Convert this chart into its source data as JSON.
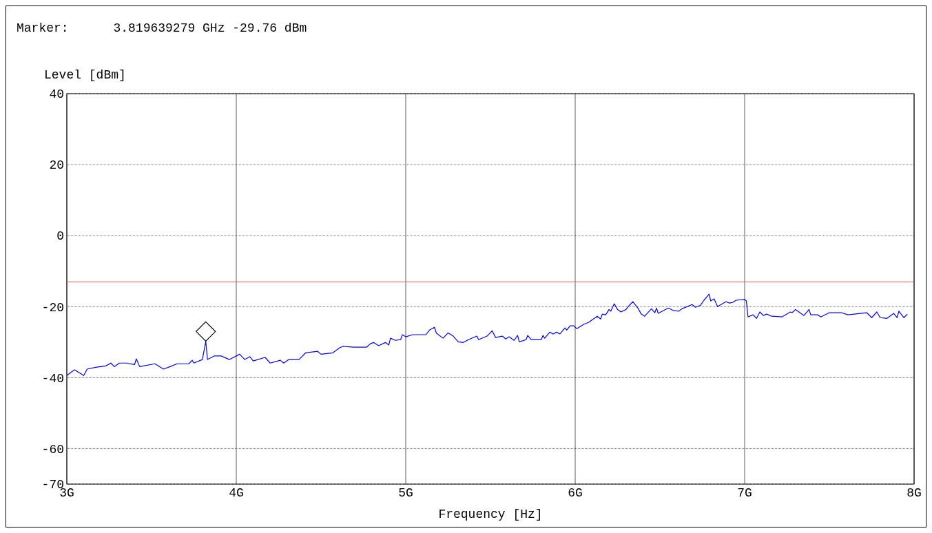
{
  "chart_data": {
    "type": "line",
    "xlabel": "Frequency [Hz]",
    "ylabel": "Level [dBm]",
    "annotations": [
      "Marker:      3.819639279 GHz -29.76 dBm"
    ],
    "xlim": [
      3,
      8
    ],
    "xticks": [
      {
        "value": 3,
        "label": "3G"
      },
      {
        "value": 4,
        "label": "4G"
      },
      {
        "value": 5,
        "label": "5G"
      },
      {
        "value": 6,
        "label": "6G"
      },
      {
        "value": 7,
        "label": "7G"
      },
      {
        "value": 8,
        "label": "8G"
      }
    ],
    "ylim": [
      -70,
      40
    ],
    "yticks": [
      40,
      20,
      0,
      -20,
      -40,
      -60,
      -70
    ],
    "grid": true,
    "marker": "none",
    "line_style": "solid",
    "ref_lines": [
      {
        "axis": "y",
        "value": -13,
        "color": "#e06060"
      }
    ],
    "series": [
      {
        "color": "#0000ff",
        "x": [
          3.0,
          3.045,
          3.1,
          3.12,
          3.17,
          3.23,
          3.26,
          3.28,
          3.31,
          3.35,
          3.4,
          3.41,
          3.43,
          3.52,
          3.57,
          3.61,
          3.65,
          3.72,
          3.74,
          3.75,
          3.8,
          3.82,
          3.83,
          3.87,
          3.91,
          3.96,
          4.02,
          4.05,
          4.08,
          4.1,
          4.17,
          4.2,
          4.26,
          4.28,
          4.31,
          4.37,
          4.41,
          4.48,
          4.5,
          4.57,
          4.61,
          4.63,
          4.69,
          4.77,
          4.79,
          4.81,
          4.84,
          4.88,
          4.9,
          4.91,
          4.94,
          4.97,
          4.98,
          5.0,
          5.04,
          5.12,
          5.14,
          5.17,
          5.18,
          5.22,
          5.25,
          5.28,
          5.31,
          5.34,
          5.37,
          5.42,
          5.43,
          5.48,
          5.51,
          5.53,
          5.57,
          5.59,
          5.61,
          5.64,
          5.66,
          5.67,
          5.71,
          5.72,
          5.74,
          5.8,
          5.81,
          5.82,
          5.85,
          5.87,
          5.89,
          5.91,
          5.94,
          5.95,
          5.97,
          5.99,
          6.01,
          6.05,
          6.08,
          6.13,
          6.15,
          6.16,
          6.18,
          6.2,
          6.21,
          6.23,
          6.25,
          6.27,
          6.3,
          6.32,
          6.34,
          6.37,
          6.39,
          6.41,
          6.45,
          6.47,
          6.48,
          6.49,
          6.55,
          6.58,
          6.61,
          6.63,
          6.69,
          6.71,
          6.74,
          6.76,
          6.79,
          6.8,
          6.82,
          6.84,
          6.89,
          6.91,
          6.93,
          6.95,
          7.0,
          7.01,
          7.02,
          7.05,
          7.07,
          7.09,
          7.11,
          7.13,
          7.16,
          7.22,
          7.27,
          7.28,
          7.3,
          7.35,
          7.38,
          7.39,
          7.43,
          7.45,
          7.5,
          7.57,
          7.61,
          7.72,
          7.75,
          7.78,
          7.8,
          7.84,
          7.88,
          7.9,
          7.91,
          7.94,
          7.96
        ],
        "values": [
          -39.4,
          -37.8,
          -39.4,
          -37.6,
          -37.1,
          -36.7,
          -35.9,
          -36.9,
          -35.9,
          -35.9,
          -36.3,
          -34.7,
          -36.9,
          -36.1,
          -37.6,
          -36.9,
          -36.1,
          -36.1,
          -35.1,
          -35.9,
          -34.9,
          -29.8,
          -34.9,
          -33.9,
          -33.9,
          -34.9,
          -33.4,
          -34.9,
          -34.1,
          -35.3,
          -34.3,
          -35.9,
          -35.1,
          -35.9,
          -34.9,
          -34.9,
          -33.0,
          -32.6,
          -33.4,
          -33.0,
          -31.6,
          -31.2,
          -31.4,
          -31.4,
          -30.5,
          -30.1,
          -31.0,
          -30.1,
          -30.8,
          -28.9,
          -29.5,
          -29.3,
          -27.9,
          -28.5,
          -27.9,
          -27.9,
          -26.6,
          -25.8,
          -27.4,
          -28.9,
          -27.4,
          -28.3,
          -29.9,
          -30.1,
          -29.3,
          -28.3,
          -29.3,
          -28.3,
          -26.8,
          -28.7,
          -28.3,
          -29.1,
          -28.5,
          -29.5,
          -28.1,
          -29.9,
          -29.3,
          -28.1,
          -29.3,
          -29.3,
          -28.1,
          -28.9,
          -27.2,
          -27.7,
          -27.2,
          -27.7,
          -26.0,
          -26.6,
          -25.4,
          -25.4,
          -26.2,
          -25.0,
          -24.4,
          -22.7,
          -23.5,
          -22.1,
          -22.3,
          -20.8,
          -21.3,
          -19.2,
          -20.8,
          -21.5,
          -20.8,
          -19.6,
          -18.6,
          -20.4,
          -22.1,
          -22.7,
          -20.6,
          -21.7,
          -20.4,
          -21.9,
          -20.4,
          -21.1,
          -21.3,
          -20.6,
          -19.4,
          -20.2,
          -19.6,
          -18.2,
          -16.5,
          -18.4,
          -17.8,
          -20.0,
          -18.6,
          -19.0,
          -18.8,
          -18.2,
          -18.0,
          -18.4,
          -22.9,
          -22.3,
          -23.3,
          -21.5,
          -22.5,
          -22.1,
          -22.7,
          -22.9,
          -21.5,
          -21.7,
          -20.8,
          -22.5,
          -20.8,
          -22.3,
          -22.3,
          -22.9,
          -21.7,
          -21.7,
          -22.3,
          -21.7,
          -23.1,
          -21.5,
          -23.1,
          -23.3,
          -21.9,
          -23.1,
          -21.3,
          -23.1,
          -22.1
        ]
      },
      {
        "type": "scatter",
        "color": "#000000",
        "marker": "diamond",
        "x": [
          3.82
        ],
        "values": [
          -27
        ]
      }
    ]
  }
}
